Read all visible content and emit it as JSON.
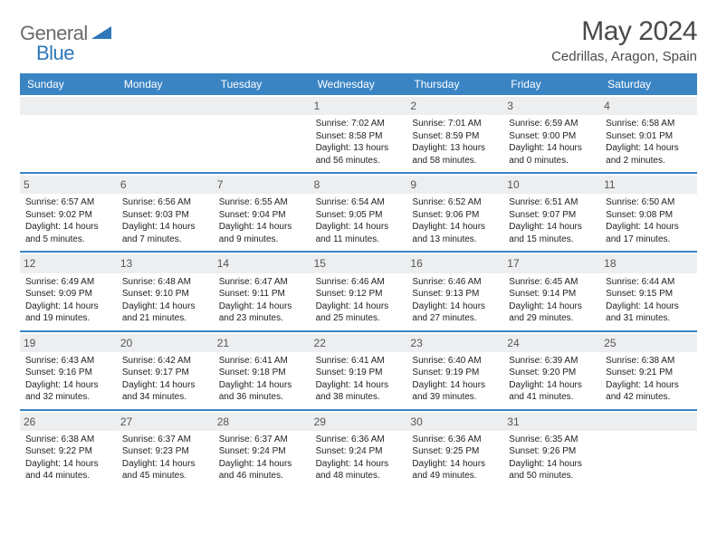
{
  "logo": {
    "text1": "General",
    "text2": "Blue"
  },
  "title": "May 2024",
  "subtitle": "Cedrillas, Aragon, Spain",
  "colors": {
    "header_bg": "#3a84c4",
    "header_text": "#ffffff",
    "daynum_bg": "#eceef0",
    "rule": "#3a84c4",
    "logo_gray": "#6b6b6b",
    "logo_blue": "#2e77b8"
  },
  "weekday_labels": [
    "Sunday",
    "Monday",
    "Tuesday",
    "Wednesday",
    "Thursday",
    "Friday",
    "Saturday"
  ],
  "weeks": [
    [
      null,
      null,
      null,
      {
        "n": "1",
        "sr": "7:02 AM",
        "ss": "8:58 PM",
        "dl": "13 hours and 56 minutes."
      },
      {
        "n": "2",
        "sr": "7:01 AM",
        "ss": "8:59 PM",
        "dl": "13 hours and 58 minutes."
      },
      {
        "n": "3",
        "sr": "6:59 AM",
        "ss": "9:00 PM",
        "dl": "14 hours and 0 minutes."
      },
      {
        "n": "4",
        "sr": "6:58 AM",
        "ss": "9:01 PM",
        "dl": "14 hours and 2 minutes."
      }
    ],
    [
      {
        "n": "5",
        "sr": "6:57 AM",
        "ss": "9:02 PM",
        "dl": "14 hours and 5 minutes."
      },
      {
        "n": "6",
        "sr": "6:56 AM",
        "ss": "9:03 PM",
        "dl": "14 hours and 7 minutes."
      },
      {
        "n": "7",
        "sr": "6:55 AM",
        "ss": "9:04 PM",
        "dl": "14 hours and 9 minutes."
      },
      {
        "n": "8",
        "sr": "6:54 AM",
        "ss": "9:05 PM",
        "dl": "14 hours and 11 minutes."
      },
      {
        "n": "9",
        "sr": "6:52 AM",
        "ss": "9:06 PM",
        "dl": "14 hours and 13 minutes."
      },
      {
        "n": "10",
        "sr": "6:51 AM",
        "ss": "9:07 PM",
        "dl": "14 hours and 15 minutes."
      },
      {
        "n": "11",
        "sr": "6:50 AM",
        "ss": "9:08 PM",
        "dl": "14 hours and 17 minutes."
      }
    ],
    [
      {
        "n": "12",
        "sr": "6:49 AM",
        "ss": "9:09 PM",
        "dl": "14 hours and 19 minutes."
      },
      {
        "n": "13",
        "sr": "6:48 AM",
        "ss": "9:10 PM",
        "dl": "14 hours and 21 minutes."
      },
      {
        "n": "14",
        "sr": "6:47 AM",
        "ss": "9:11 PM",
        "dl": "14 hours and 23 minutes."
      },
      {
        "n": "15",
        "sr": "6:46 AM",
        "ss": "9:12 PM",
        "dl": "14 hours and 25 minutes."
      },
      {
        "n": "16",
        "sr": "6:46 AM",
        "ss": "9:13 PM",
        "dl": "14 hours and 27 minutes."
      },
      {
        "n": "17",
        "sr": "6:45 AM",
        "ss": "9:14 PM",
        "dl": "14 hours and 29 minutes."
      },
      {
        "n": "18",
        "sr": "6:44 AM",
        "ss": "9:15 PM",
        "dl": "14 hours and 31 minutes."
      }
    ],
    [
      {
        "n": "19",
        "sr": "6:43 AM",
        "ss": "9:16 PM",
        "dl": "14 hours and 32 minutes."
      },
      {
        "n": "20",
        "sr": "6:42 AM",
        "ss": "9:17 PM",
        "dl": "14 hours and 34 minutes."
      },
      {
        "n": "21",
        "sr": "6:41 AM",
        "ss": "9:18 PM",
        "dl": "14 hours and 36 minutes."
      },
      {
        "n": "22",
        "sr": "6:41 AM",
        "ss": "9:19 PM",
        "dl": "14 hours and 38 minutes."
      },
      {
        "n": "23",
        "sr": "6:40 AM",
        "ss": "9:19 PM",
        "dl": "14 hours and 39 minutes."
      },
      {
        "n": "24",
        "sr": "6:39 AM",
        "ss": "9:20 PM",
        "dl": "14 hours and 41 minutes."
      },
      {
        "n": "25",
        "sr": "6:38 AM",
        "ss": "9:21 PM",
        "dl": "14 hours and 42 minutes."
      }
    ],
    [
      {
        "n": "26",
        "sr": "6:38 AM",
        "ss": "9:22 PM",
        "dl": "14 hours and 44 minutes."
      },
      {
        "n": "27",
        "sr": "6:37 AM",
        "ss": "9:23 PM",
        "dl": "14 hours and 45 minutes."
      },
      {
        "n": "28",
        "sr": "6:37 AM",
        "ss": "9:24 PM",
        "dl": "14 hours and 46 minutes."
      },
      {
        "n": "29",
        "sr": "6:36 AM",
        "ss": "9:24 PM",
        "dl": "14 hours and 48 minutes."
      },
      {
        "n": "30",
        "sr": "6:36 AM",
        "ss": "9:25 PM",
        "dl": "14 hours and 49 minutes."
      },
      {
        "n": "31",
        "sr": "6:35 AM",
        "ss": "9:26 PM",
        "dl": "14 hours and 50 minutes."
      },
      null
    ]
  ],
  "labels": {
    "sunrise": "Sunrise:",
    "sunset": "Sunset:",
    "daylight": "Daylight:"
  }
}
